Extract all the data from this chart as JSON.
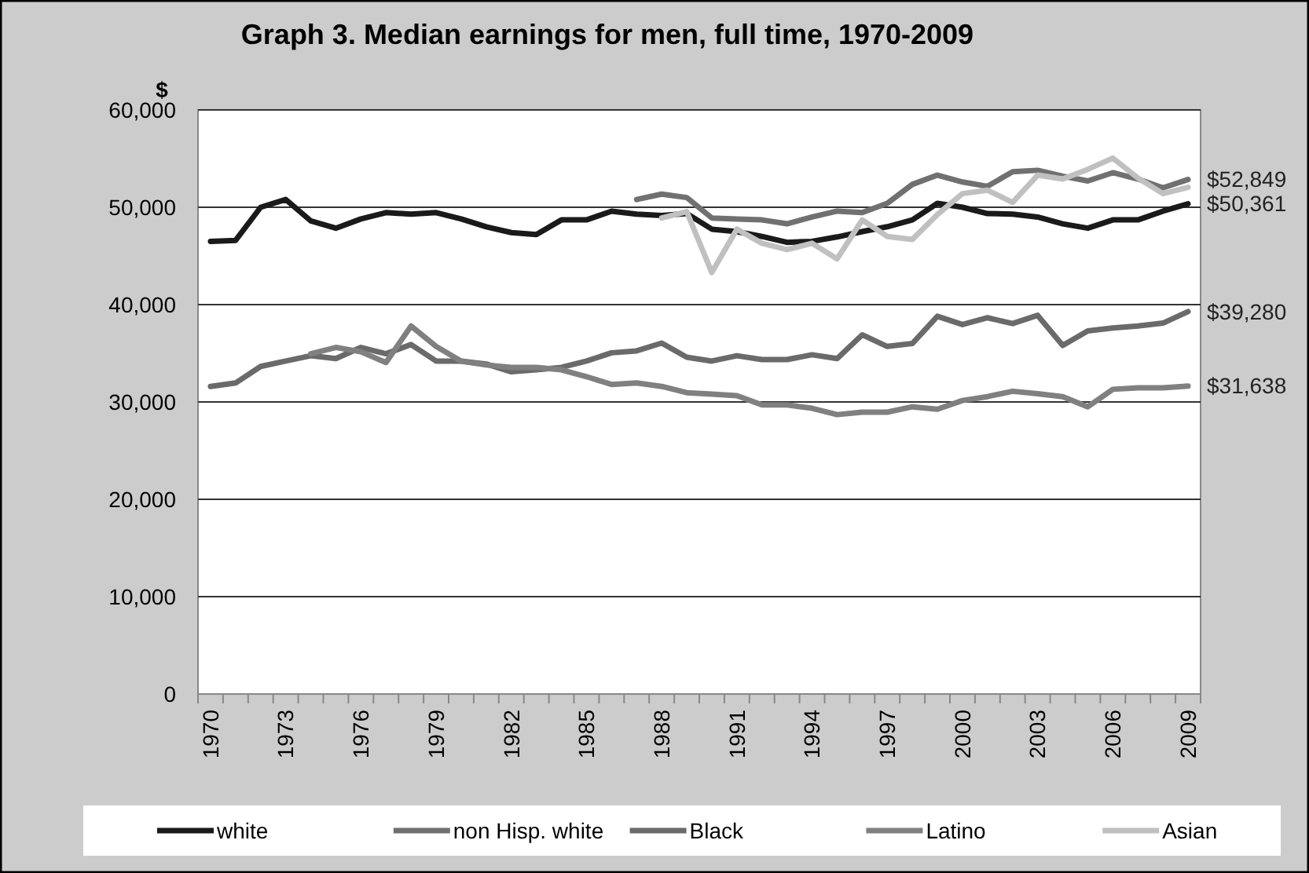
{
  "chart_data": {
    "type": "line",
    "title": "Graph 3. Median earnings  for men, full time, 1970-2009",
    "ylabel": "$",
    "categories": [
      "1970",
      null,
      null,
      "1973",
      null,
      null,
      "1976",
      null,
      null,
      "1979",
      null,
      null,
      "1982",
      null,
      null,
      "1985",
      null,
      null,
      "1988",
      null,
      null,
      "1991",
      null,
      null,
      "1994",
      null,
      null,
      "1997",
      null,
      null,
      "2000",
      null,
      null,
      "2003",
      null,
      null,
      "2006",
      null,
      null,
      "2009"
    ],
    "series": [
      {
        "name": "white",
        "color": "#1a1a1a",
        "values": [
          46500,
          46600,
          50000,
          50800,
          48600,
          47850,
          48800,
          49450,
          49300,
          49450,
          48800,
          48000,
          47400,
          47200,
          48700,
          48700,
          49600,
          49300,
          49150,
          49350,
          47750,
          47500,
          47000,
          46400,
          46500,
          46950,
          47500,
          48000,
          48700,
          50400,
          50000,
          49350,
          49300,
          49000,
          48300,
          47850,
          48700,
          48700,
          49600,
          50361
        ]
      },
      {
        "name": "non Hisp. white",
        "color": "#707070",
        "values": [
          null,
          null,
          null,
          null,
          null,
          null,
          null,
          null,
          null,
          null,
          null,
          null,
          null,
          null,
          null,
          null,
          null,
          50800,
          51350,
          51000,
          48900,
          48800,
          48700,
          48300,
          49000,
          49600,
          49450,
          50400,
          52350,
          53300,
          52600,
          52150,
          53650,
          53800,
          53200,
          52700,
          53550,
          52900,
          52000,
          52849
        ]
      },
      {
        "name": "Black",
        "color": "#6a6a6a",
        "values": [
          31600,
          31950,
          33650,
          34200,
          34750,
          34450,
          35600,
          34950,
          35900,
          34200,
          34200,
          33900,
          33100,
          33300,
          33550,
          34200,
          35050,
          35250,
          36050,
          34600,
          34200,
          34750,
          34350,
          34350,
          34850,
          34450,
          36900,
          35700,
          36000,
          38800,
          37950,
          38650,
          38050,
          38900,
          35800,
          37300,
          37600,
          37800,
          38100,
          39280
        ]
      },
      {
        "name": "Latino",
        "color": "#808080",
        "values": [
          null,
          null,
          null,
          null,
          34950,
          35600,
          35150,
          34050,
          37800,
          35700,
          34200,
          33800,
          33550,
          33550,
          33300,
          32600,
          31800,
          31950,
          31600,
          30950,
          30800,
          30650,
          29700,
          29700,
          29350,
          28700,
          28950,
          28950,
          29500,
          29250,
          30150,
          30550,
          31100,
          30850,
          30550,
          29500,
          31300,
          31450,
          31450,
          31638
        ]
      },
      {
        "name": "Asian",
        "color": "#c0c0c0",
        "values": [
          null,
          null,
          null,
          null,
          null,
          null,
          null,
          null,
          null,
          null,
          null,
          null,
          null,
          null,
          null,
          null,
          null,
          null,
          48900,
          49550,
          43300,
          47750,
          46300,
          45650,
          46300,
          44700,
          48700,
          47000,
          46700,
          49250,
          51400,
          51750,
          50500,
          53300,
          52900,
          53900,
          55050,
          53000,
          51400,
          52050
        ]
      }
    ],
    "ylim": [
      0,
      60000
    ],
    "yticks": [
      {
        "value": 0,
        "label": "0"
      },
      {
        "value": 10000,
        "label": "10,000"
      },
      {
        "value": 20000,
        "label": "20,000"
      },
      {
        "value": 30000,
        "label": "30,000"
      },
      {
        "value": 40000,
        "label": "40,000"
      },
      {
        "value": 50000,
        "label": "50,000"
      },
      {
        "value": 60000,
        "label": "60,000"
      }
    ],
    "grid": "y",
    "legend": "bottom",
    "marker": "none",
    "line_style": "solid",
    "annotations": [
      {
        "text": "$52,849",
        "x": "2009",
        "y": 52849
      },
      {
        "text": "$50,361",
        "x": "2009",
        "y": 50361
      },
      {
        "text": "$39,280",
        "x": "2009",
        "y": 39280
      },
      {
        "text": "$31,638",
        "x": "2009",
        "y": 31638
      }
    ]
  }
}
